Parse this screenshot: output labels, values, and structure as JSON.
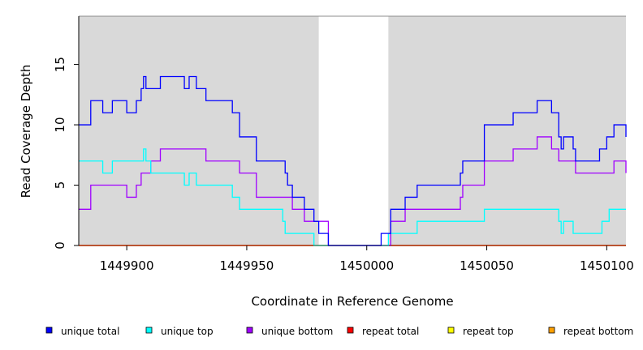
{
  "chart_data": {
    "type": "line",
    "xlabel": "Coordinate in Reference Genome",
    "ylabel": "Read Coverage Depth",
    "xlim": [
      1449880,
      1450108
    ],
    "ylim": [
      0,
      19
    ],
    "x_ticks": [
      1449900,
      1449950,
      1450000,
      1450050,
      1450100
    ],
    "x_tick_labels": [
      "1449900",
      "1449950",
      "1450000",
      "1450050",
      "1450100"
    ],
    "y_ticks": [
      0,
      5,
      10,
      15
    ],
    "y_tick_labels": [
      "0",
      "5",
      "10",
      "15"
    ],
    "shaded_regions": [
      [
        1449880,
        1449980
      ],
      [
        1450009,
        1450108
      ]
    ],
    "shade_color": "#d9d9d9",
    "legend_position": "bottom",
    "series": [
      {
        "name": "unique total",
        "color": "#0000ff",
        "points": [
          [
            1449880,
            10
          ],
          [
            1449885,
            10
          ],
          [
            1449885,
            12
          ],
          [
            1449890,
            12
          ],
          [
            1449890,
            11
          ],
          [
            1449894,
            11
          ],
          [
            1449894,
            12
          ],
          [
            1449900,
            12
          ],
          [
            1449900,
            11
          ],
          [
            1449904,
            11
          ],
          [
            1449904,
            12
          ],
          [
            1449906,
            12
          ],
          [
            1449906,
            13
          ],
          [
            1449907,
            13
          ],
          [
            1449907,
            14
          ],
          [
            1449908,
            14
          ],
          [
            1449908,
            13
          ],
          [
            1449914,
            13
          ],
          [
            1449914,
            14
          ],
          [
            1449924,
            14
          ],
          [
            1449924,
            13
          ],
          [
            1449926,
            13
          ],
          [
            1449926,
            14
          ],
          [
            1449929,
            14
          ],
          [
            1449929,
            13
          ],
          [
            1449933,
            13
          ],
          [
            1449933,
            12
          ],
          [
            1449944,
            12
          ],
          [
            1449944,
            11
          ],
          [
            1449947,
            11
          ],
          [
            1449947,
            9
          ],
          [
            1449954,
            9
          ],
          [
            1449954,
            7
          ],
          [
            1449966,
            7
          ],
          [
            1449966,
            6
          ],
          [
            1449967,
            6
          ],
          [
            1449967,
            5
          ],
          [
            1449969,
            5
          ],
          [
            1449969,
            4
          ],
          [
            1449974,
            4
          ],
          [
            1449974,
            3
          ],
          [
            1449978,
            3
          ],
          [
            1449978,
            2
          ],
          [
            1449980,
            2
          ],
          [
            1449980,
            1
          ],
          [
            1449984,
            1
          ],
          [
            1449984,
            0
          ],
          [
            1450006,
            0
          ],
          [
            1450006,
            1
          ],
          [
            1450010,
            1
          ],
          [
            1450010,
            3
          ],
          [
            1450016,
            3
          ],
          [
            1450016,
            4
          ],
          [
            1450021,
            4
          ],
          [
            1450021,
            5
          ],
          [
            1450039,
            5
          ],
          [
            1450039,
            6
          ],
          [
            1450040,
            6
          ],
          [
            1450040,
            7
          ],
          [
            1450049,
            7
          ],
          [
            1450049,
            10
          ],
          [
            1450061,
            10
          ],
          [
            1450061,
            11
          ],
          [
            1450071,
            11
          ],
          [
            1450071,
            12
          ],
          [
            1450077,
            12
          ],
          [
            1450077,
            11
          ],
          [
            1450080,
            11
          ],
          [
            1450080,
            9
          ],
          [
            1450081,
            9
          ],
          [
            1450081,
            8
          ],
          [
            1450082,
            8
          ],
          [
            1450082,
            9
          ],
          [
            1450086,
            9
          ],
          [
            1450086,
            8
          ],
          [
            1450087,
            8
          ],
          [
            1450087,
            7
          ],
          [
            1450097,
            7
          ],
          [
            1450097,
            8
          ],
          [
            1450100,
            8
          ],
          [
            1450100,
            9
          ],
          [
            1450103,
            9
          ],
          [
            1450103,
            10
          ],
          [
            1450108,
            10
          ],
          [
            1450108,
            9
          ]
        ]
      },
      {
        "name": "unique top",
        "color": "#00ffff",
        "points": [
          [
            1449880,
            7
          ],
          [
            1449890,
            7
          ],
          [
            1449890,
            6
          ],
          [
            1449894,
            6
          ],
          [
            1449894,
            7
          ],
          [
            1449907,
            7
          ],
          [
            1449907,
            8
          ],
          [
            1449908,
            8
          ],
          [
            1449908,
            7
          ],
          [
            1449910,
            7
          ],
          [
            1449910,
            6
          ],
          [
            1449924,
            6
          ],
          [
            1449924,
            5
          ],
          [
            1449926,
            5
          ],
          [
            1449926,
            6
          ],
          [
            1449929,
            6
          ],
          [
            1449929,
            5
          ],
          [
            1449944,
            5
          ],
          [
            1449944,
            4
          ],
          [
            1449947,
            4
          ],
          [
            1449947,
            3
          ],
          [
            1449965,
            3
          ],
          [
            1449965,
            2
          ],
          [
            1449966,
            2
          ],
          [
            1449966,
            1
          ],
          [
            1449978,
            1
          ],
          [
            1449978,
            0
          ],
          [
            1450009,
            0
          ],
          [
            1450009,
            1
          ],
          [
            1450021,
            1
          ],
          [
            1450021,
            2
          ],
          [
            1450049,
            2
          ],
          [
            1450049,
            3
          ],
          [
            1450080,
            3
          ],
          [
            1450080,
            2
          ],
          [
            1450081,
            2
          ],
          [
            1450081,
            1
          ],
          [
            1450082,
            1
          ],
          [
            1450082,
            2
          ],
          [
            1450086,
            2
          ],
          [
            1450086,
            1
          ],
          [
            1450098,
            1
          ],
          [
            1450098,
            2
          ],
          [
            1450101,
            2
          ],
          [
            1450101,
            3
          ],
          [
            1450108,
            3
          ]
        ]
      },
      {
        "name": "unique bottom",
        "color": "#a000ff",
        "points": [
          [
            1449880,
            3
          ],
          [
            1449885,
            3
          ],
          [
            1449885,
            5
          ],
          [
            1449900,
            5
          ],
          [
            1449900,
            4
          ],
          [
            1449904,
            4
          ],
          [
            1449904,
            5
          ],
          [
            1449906,
            5
          ],
          [
            1449906,
            6
          ],
          [
            1449910,
            6
          ],
          [
            1449910,
            7
          ],
          [
            1449914,
            7
          ],
          [
            1449914,
            8
          ],
          [
            1449933,
            8
          ],
          [
            1449933,
            7
          ],
          [
            1449947,
            7
          ],
          [
            1449947,
            6
          ],
          [
            1449954,
            6
          ],
          [
            1449954,
            4
          ],
          [
            1449969,
            4
          ],
          [
            1449969,
            3
          ],
          [
            1449974,
            3
          ],
          [
            1449974,
            2
          ],
          [
            1449984,
            2
          ],
          [
            1449984,
            0
          ],
          [
            1450010,
            0
          ],
          [
            1450010,
            2
          ],
          [
            1450016,
            2
          ],
          [
            1450016,
            3
          ],
          [
            1450039,
            3
          ],
          [
            1450039,
            4
          ],
          [
            1450040,
            4
          ],
          [
            1450040,
            5
          ],
          [
            1450049,
            5
          ],
          [
            1450049,
            7
          ],
          [
            1450061,
            7
          ],
          [
            1450061,
            8
          ],
          [
            1450071,
            8
          ],
          [
            1450071,
            9
          ],
          [
            1450077,
            9
          ],
          [
            1450077,
            8
          ],
          [
            1450080,
            8
          ],
          [
            1450080,
            7
          ],
          [
            1450087,
            7
          ],
          [
            1450087,
            6
          ],
          [
            1450103,
            6
          ],
          [
            1450103,
            7
          ],
          [
            1450108,
            7
          ],
          [
            1450108,
            6
          ]
        ]
      },
      {
        "name": "repeat total",
        "color": "#ff0000",
        "points": [
          [
            1449880,
            0
          ],
          [
            1450108,
            0
          ]
        ]
      },
      {
        "name": "repeat top",
        "color": "#ffff00",
        "points": [
          [
            1449880,
            0
          ],
          [
            1450108,
            0
          ]
        ]
      },
      {
        "name": "repeat bottom",
        "color": "#ffa000",
        "points": [
          [
            1449880,
            0
          ],
          [
            1450108,
            0
          ]
        ]
      }
    ]
  }
}
